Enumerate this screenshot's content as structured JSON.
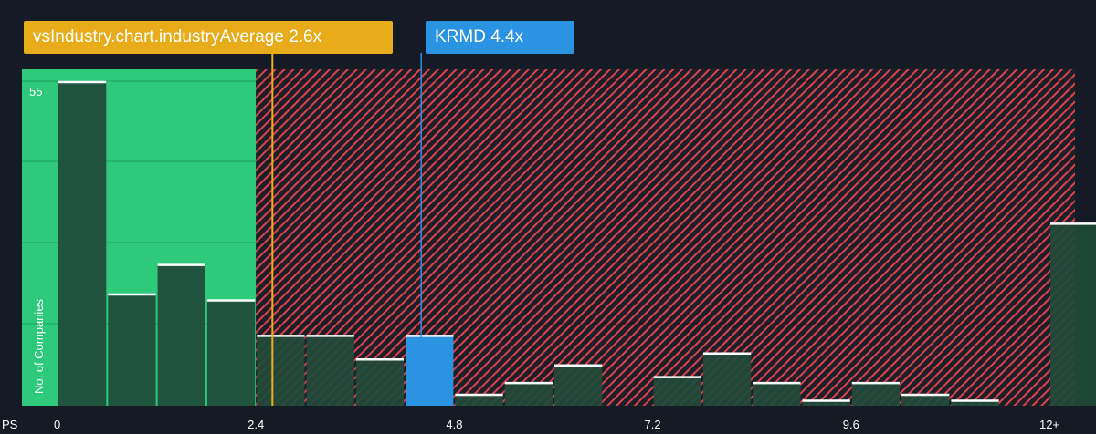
{
  "industry_label": "vsIndustry.chart.industryAverage 2.6x",
  "company_label": "KRMD 4.4x",
  "colors": {
    "background": "#151b24",
    "fair_zone": "#2ec97b",
    "overvalued_hatch": "#e0414e",
    "bar": "#1f4a3a",
    "company_bar": "#2a93e2",
    "industry_line": "#f0ad1c",
    "company_line": "#2a93e2"
  },
  "chart_data": {
    "type": "bar",
    "xlabel": "PS",
    "ylabel": "No. of Companies",
    "x_ticks": [
      "0",
      "2.4",
      "4.8",
      "7.2",
      "9.6",
      "12+"
    ],
    "y_ticks": [
      "55"
    ],
    "ylim": [
      0,
      55
    ],
    "bin_width": 0.6,
    "industry_average": 2.6,
    "company": "KRMD",
    "company_value": 4.4,
    "bins": [
      0.0,
      0.6,
      1.2,
      1.8,
      2.4,
      3.0,
      3.6,
      4.2,
      4.8,
      5.4,
      6.0,
      6.6,
      7.2,
      7.8,
      8.4,
      9.0,
      9.6,
      10.2,
      10.8,
      11.4,
      12.0
    ],
    "values": [
      55,
      19,
      24,
      18,
      12,
      12,
      8,
      12,
      2,
      4,
      7,
      0,
      5,
      9,
      4,
      1,
      4,
      2,
      1,
      0,
      31
    ]
  }
}
